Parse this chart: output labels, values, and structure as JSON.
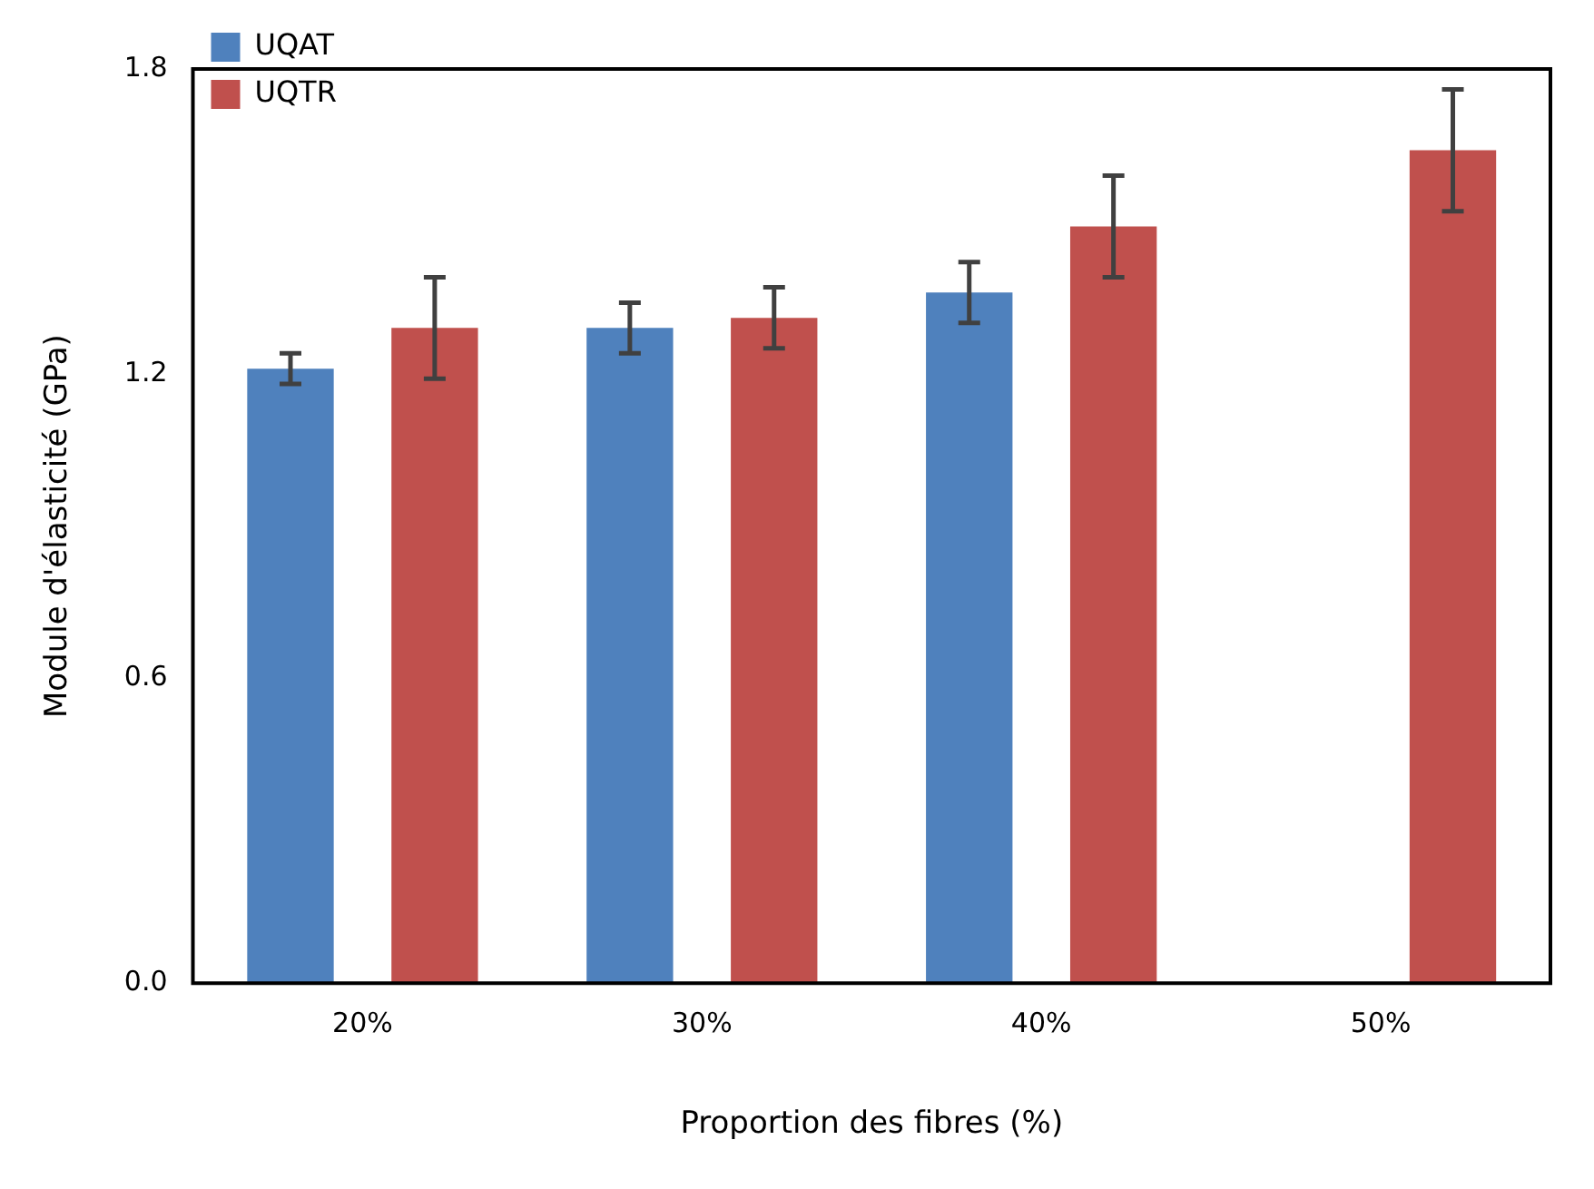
{
  "chart_data": {
    "type": "bar",
    "xlabel": "Proportion des fibres (%)",
    "ylabel": "Module d'élasticité (GPa)",
    "categories": [
      "20%",
      "30%",
      "40%",
      "50%"
    ],
    "series": [
      {
        "name": "UQAT",
        "color": "#4f81bd",
        "values": [
          1.21,
          1.29,
          1.36,
          null
        ],
        "errors": [
          0.03,
          0.05,
          0.06,
          null
        ]
      },
      {
        "name": "UQTR",
        "color": "#c0504d",
        "values": [
          1.29,
          1.31,
          1.49,
          1.64
        ],
        "errors": [
          0.1,
          0.06,
          0.1,
          0.12
        ]
      }
    ],
    "ylim": [
      0,
      1.8
    ],
    "yticks": [
      {
        "value": 0,
        "label": "0.0"
      },
      0.6,
      1.2,
      1.8
    ],
    "grid": false,
    "legend": "top left"
  }
}
